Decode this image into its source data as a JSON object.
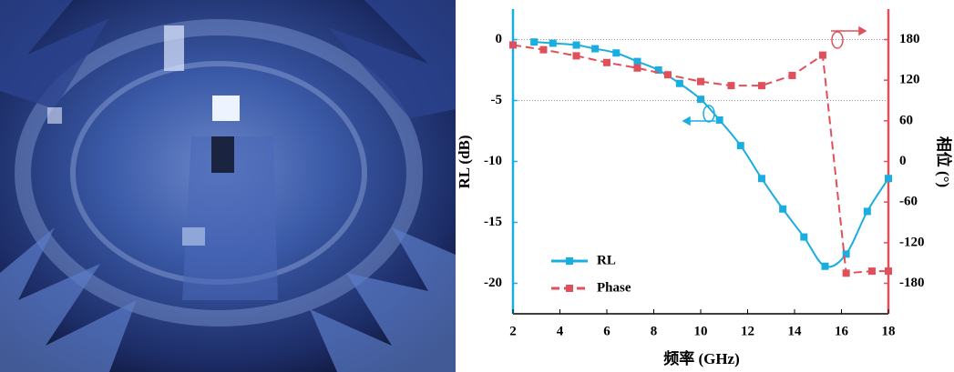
{
  "chart_data": {
    "type": "line",
    "x_label": "频率 (GHz)",
    "y_label": "RL (dB)",
    "y2_label": "相位 (°)",
    "xlim": [
      2,
      18
    ],
    "xticks": [
      2,
      4,
      6,
      8,
      10,
      12,
      14,
      16,
      18
    ],
    "ylim": [
      -22.5,
      2.5
    ],
    "yticks": [
      0,
      -5,
      -10,
      -15,
      -20
    ],
    "y2lim": [
      -225,
      225
    ],
    "y2ticks": [
      180,
      120,
      60,
      0,
      -60,
      -120,
      -180
    ],
    "grid_y": [
      0,
      -5
    ],
    "legend": "lower left",
    "series": [
      {
        "name": "RL",
        "color": "#1aade0",
        "x": [
          2.9,
          3.7,
          4.7,
          5.5,
          6.4,
          7.3,
          8.2,
          9.1,
          10.0,
          10.8,
          11.7,
          12.6,
          13.5,
          14.4,
          15.3,
          16.2,
          17.1,
          18.0
        ],
        "values": [
          -0.2,
          -0.3,
          -0.45,
          -0.75,
          -1.1,
          -1.8,
          -2.5,
          -3.6,
          -4.9,
          -6.6,
          -8.7,
          -11.4,
          -13.9,
          -16.2,
          -18.6,
          -17.6,
          -14.1,
          -11.4
        ]
      },
      {
        "name": "Phase",
        "color": "#e0505a",
        "axis": "y2",
        "x": [
          2.0,
          3.3,
          4.7,
          6.0,
          7.3,
          8.6,
          10.0,
          11.3,
          12.6,
          13.9,
          15.2,
          16.2,
          17.3,
          18.0
        ],
        "values": [
          172,
          165,
          156,
          146,
          138,
          128,
          118,
          112,
          112,
          127,
          157,
          -165,
          -162,
          -162
        ]
      }
    ]
  }
}
